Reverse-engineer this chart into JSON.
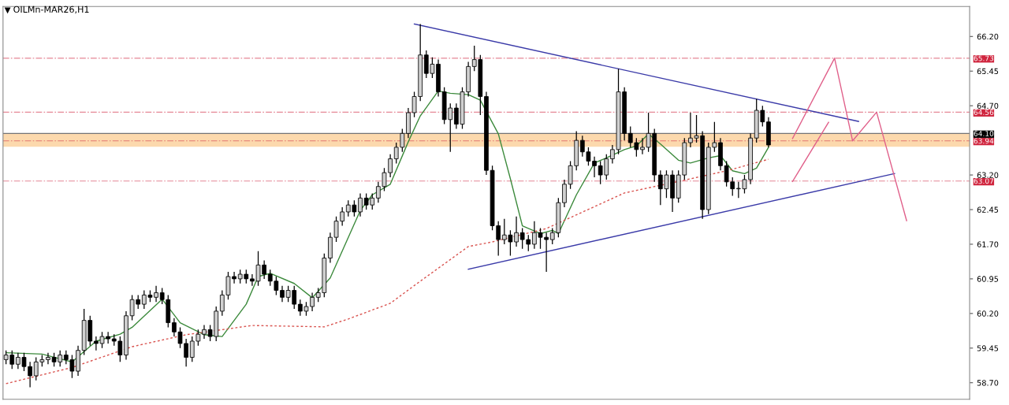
{
  "chart_data": {
    "type": "candlestick",
    "title": "OILMn-MAR26,H1",
    "color": "#000000",
    "categories": [
      null,
      null,
      null,
      null,
      null,
      null,
      null,
      null,
      null,
      null,
      null,
      null,
      null,
      null,
      null,
      null,
      null,
      null,
      null,
      null,
      null,
      null,
      null,
      null,
      null,
      null,
      null,
      null,
      null,
      null,
      null,
      null,
      null,
      null,
      null,
      null,
      null,
      null,
      null,
      null,
      null,
      null,
      null,
      null,
      null,
      null,
      null,
      null,
      null,
      null,
      null,
      null,
      null,
      null,
      null,
      null,
      null,
      null,
      null,
      null,
      null,
      null,
      null,
      null,
      null,
      null,
      null,
      null,
      null,
      null,
      null,
      null,
      null,
      null,
      null,
      null,
      null,
      null,
      null,
      null,
      null,
      null,
      null,
      null,
      null,
      null,
      null,
      null,
      null,
      null,
      null,
      null,
      null,
      null,
      null,
      null,
      null,
      null,
      null,
      null,
      null,
      null,
      null,
      null,
      null,
      null,
      null,
      null,
      null,
      null,
      null,
      null,
      null,
      null,
      null,
      null,
      null,
      null,
      null,
      null,
      null,
      null,
      null,
      null,
      null,
      null,
      null,
      null,
      null,
      null,
      null,
      null,
      null,
      null,
      null,
      null,
      null,
      null,
      null,
      null,
      null,
      null,
      null,
      null,
      null,
      null,
      null,
      null,
      null,
      null,
      null,
      null,
      null,
      null,
      null,
      null,
      null,
      null,
      null,
      null,
      null
    ],
    "ohlc": [
      [
        59.2,
        59.4,
        59.1,
        59.3
      ],
      [
        59.3,
        59.4,
        59.0,
        59.1
      ],
      [
        59.1,
        59.35,
        59.0,
        59.25
      ],
      [
        59.25,
        59.35,
        58.95,
        59.05
      ],
      [
        59.05,
        59.15,
        58.6,
        58.85
      ],
      [
        58.85,
        59.25,
        58.75,
        59.15
      ],
      [
        59.15,
        59.3,
        59.05,
        59.2
      ],
      [
        59.2,
        59.35,
        59.1,
        59.25
      ],
      [
        59.25,
        59.35,
        59.05,
        59.15
      ],
      [
        59.15,
        59.4,
        59.05,
        59.3
      ],
      [
        59.3,
        59.4,
        59.1,
        59.2
      ],
      [
        59.2,
        59.3,
        58.8,
        58.95
      ],
      [
        58.95,
        59.5,
        58.85,
        59.4
      ],
      [
        59.4,
        60.3,
        59.3,
        60.05
      ],
      [
        60.05,
        60.15,
        59.5,
        59.6
      ],
      [
        59.6,
        59.7,
        59.4,
        59.55
      ],
      [
        59.55,
        59.8,
        59.45,
        59.7
      ],
      [
        59.7,
        59.8,
        59.55,
        59.65
      ],
      [
        59.65,
        59.75,
        59.5,
        59.6
      ],
      [
        59.6,
        59.7,
        59.15,
        59.3
      ],
      [
        59.3,
        60.25,
        59.2,
        60.15
      ],
      [
        60.15,
        60.6,
        60.05,
        60.5
      ],
      [
        60.5,
        60.6,
        60.3,
        60.4
      ],
      [
        60.4,
        60.7,
        60.3,
        60.6
      ],
      [
        60.6,
        60.7,
        60.45,
        60.55
      ],
      [
        60.55,
        60.8,
        60.45,
        60.65
      ],
      [
        60.65,
        60.75,
        60.4,
        60.5
      ],
      [
        60.5,
        60.6,
        59.9,
        60.0
      ],
      [
        60.0,
        60.1,
        59.7,
        59.8
      ],
      [
        59.8,
        59.9,
        59.45,
        59.55
      ],
      [
        59.55,
        59.65,
        59.05,
        59.25
      ],
      [
        59.25,
        59.7,
        59.15,
        59.6
      ],
      [
        59.6,
        59.85,
        59.5,
        59.75
      ],
      [
        59.75,
        59.95,
        59.65,
        59.85
      ],
      [
        59.85,
        59.95,
        59.6,
        59.7
      ],
      [
        59.7,
        60.35,
        59.6,
        60.25
      ],
      [
        60.25,
        60.7,
        60.15,
        60.6
      ],
      [
        60.6,
        61.1,
        60.5,
        61.0
      ],
      [
        61.0,
        61.1,
        60.85,
        60.95
      ],
      [
        60.95,
        61.15,
        60.85,
        61.05
      ],
      [
        61.05,
        61.15,
        60.85,
        60.95
      ],
      [
        60.95,
        61.05,
        60.8,
        60.9
      ],
      [
        60.9,
        61.55,
        60.8,
        61.25
      ],
      [
        61.25,
        61.35,
        60.95,
        61.05
      ],
      [
        61.05,
        61.15,
        60.8,
        60.9
      ],
      [
        60.9,
        61.0,
        60.6,
        60.7
      ],
      [
        60.7,
        60.8,
        60.45,
        60.55
      ],
      [
        60.55,
        60.8,
        60.45,
        60.7
      ],
      [
        60.7,
        60.8,
        60.3,
        60.4
      ],
      [
        60.4,
        60.5,
        60.15,
        60.25
      ],
      [
        60.25,
        60.45,
        60.15,
        60.35
      ],
      [
        60.35,
        60.65,
        60.25,
        60.55
      ],
      [
        60.55,
        60.75,
        60.45,
        60.65
      ],
      [
        60.65,
        61.5,
        60.55,
        61.4
      ],
      [
        61.4,
        61.95,
        61.3,
        61.85
      ],
      [
        61.85,
        62.3,
        61.75,
        62.2
      ],
      [
        62.2,
        62.5,
        62.1,
        62.4
      ],
      [
        62.4,
        62.65,
        62.3,
        62.55
      ],
      [
        62.55,
        62.65,
        62.3,
        62.4
      ],
      [
        62.4,
        62.8,
        62.3,
        62.7
      ],
      [
        62.7,
        62.8,
        62.45,
        62.55
      ],
      [
        62.55,
        62.8,
        62.45,
        62.7
      ],
      [
        62.7,
        63.05,
        62.6,
        62.95
      ],
      [
        62.95,
        63.35,
        62.85,
        63.25
      ],
      [
        63.25,
        63.65,
        63.15,
        63.55
      ],
      [
        63.55,
        63.9,
        63.45,
        63.8
      ],
      [
        63.8,
        64.2,
        63.7,
        64.1
      ],
      [
        64.1,
        64.65,
        64.0,
        64.55
      ],
      [
        64.55,
        65.0,
        64.45,
        64.9
      ],
      [
        64.9,
        66.47,
        64.8,
        65.8
      ],
      [
        65.8,
        65.9,
        65.3,
        65.4
      ],
      [
        65.4,
        65.75,
        65.3,
        65.6
      ],
      [
        65.6,
        65.7,
        64.9,
        65.0
      ],
      [
        65.0,
        65.1,
        64.3,
        64.4
      ],
      [
        64.4,
        64.75,
        63.7,
        64.65
      ],
      [
        64.65,
        64.75,
        64.2,
        64.3
      ],
      [
        64.3,
        65.1,
        64.2,
        65.0
      ],
      [
        65.0,
        65.65,
        64.9,
        65.55
      ],
      [
        65.55,
        66.0,
        65.45,
        65.7
      ],
      [
        65.7,
        65.8,
        64.5,
        64.9
      ],
      [
        64.9,
        65.0,
        63.2,
        63.3
      ],
      [
        63.3,
        63.4,
        62.0,
        62.1
      ],
      [
        62.1,
        62.2,
        61.45,
        61.8
      ],
      [
        61.8,
        62.25,
        61.7,
        61.9
      ],
      [
        61.9,
        62.0,
        61.45,
        61.75
      ],
      [
        61.75,
        62.3,
        61.65,
        61.95
      ],
      [
        61.95,
        62.05,
        61.6,
        61.8
      ],
      [
        61.8,
        61.9,
        61.55,
        61.7
      ],
      [
        61.7,
        62.2,
        61.6,
        61.95
      ],
      [
        61.95,
        62.05,
        61.6,
        61.85
      ],
      [
        61.85,
        61.95,
        61.1,
        61.8
      ],
      [
        61.8,
        62.05,
        61.7,
        61.95
      ],
      [
        61.95,
        62.7,
        61.85,
        62.6
      ],
      [
        62.6,
        63.1,
        62.5,
        63.0
      ],
      [
        63.0,
        63.5,
        62.9,
        63.4
      ],
      [
        63.4,
        64.15,
        63.3,
        63.95
      ],
      [
        63.95,
        64.05,
        63.6,
        63.7
      ],
      [
        63.7,
        63.8,
        63.4,
        63.5
      ],
      [
        63.5,
        63.6,
        63.15,
        63.4
      ],
      [
        63.4,
        63.5,
        63.0,
        63.2
      ],
      [
        63.2,
        63.65,
        63.1,
        63.55
      ],
      [
        63.55,
        63.85,
        63.45,
        63.75
      ],
      [
        63.75,
        65.5,
        63.65,
        65.0
      ],
      [
        65.0,
        65.1,
        63.95,
        64.1
      ],
      [
        64.1,
        64.25,
        63.8,
        63.9
      ],
      [
        63.9,
        64.0,
        63.6,
        63.75
      ],
      [
        63.75,
        64.0,
        63.65,
        63.8
      ],
      [
        63.8,
        64.55,
        63.7,
        64.1
      ],
      [
        64.1,
        64.2,
        63.05,
        63.2
      ],
      [
        63.2,
        63.3,
        62.55,
        62.9
      ],
      [
        62.9,
        63.3,
        62.7,
        63.2
      ],
      [
        63.2,
        63.3,
        62.4,
        62.7
      ],
      [
        62.7,
        63.3,
        62.6,
        63.2
      ],
      [
        63.2,
        64.0,
        63.1,
        63.9
      ],
      [
        63.9,
        64.55,
        63.8,
        64.0
      ],
      [
        64.0,
        64.5,
        63.9,
        64.05
      ],
      [
        64.05,
        64.15,
        62.25,
        62.45
      ],
      [
        62.45,
        63.9,
        62.35,
        63.8
      ],
      [
        63.8,
        64.35,
        63.7,
        63.9
      ],
      [
        63.9,
        64.0,
        63.3,
        63.4
      ],
      [
        63.4,
        63.5,
        62.95,
        63.05
      ],
      [
        63.05,
        63.15,
        62.75,
        62.9
      ],
      [
        62.9,
        63.05,
        62.7,
        62.9
      ],
      [
        62.9,
        63.2,
        62.8,
        63.1
      ],
      [
        63.1,
        64.1,
        63.0,
        64.0
      ],
      [
        64.0,
        64.85,
        63.9,
        64.6
      ],
      [
        64.6,
        64.7,
        64.25,
        64.35
      ],
      [
        64.35,
        64.45,
        63.8,
        63.85
      ],
      null,
      null,
      null,
      null,
      null,
      null,
      null,
      null,
      null,
      null,
      null,
      null,
      null,
      null,
      null,
      null,
      null,
      null,
      null,
      null,
      null,
      null,
      null,
      null,
      null,
      null,
      null,
      null,
      null,
      null,
      null,
      null,
      null
    ],
    "series": [
      {
        "type": "line",
        "color": "#3c8a3c",
        "line_style": "solid",
        "values": [
          59.35,
          null,
          null,
          null,
          null,
          null,
          59.32,
          null,
          null,
          null,
          null,
          59.15,
          null,
          null,
          null,
          59.6,
          null,
          null,
          null,
          59.75,
          null,
          59.9,
          null,
          null,
          null,
          null,
          60.51,
          null,
          null,
          60.0,
          null,
          null,
          null,
          59.74,
          null,
          null,
          59.7,
          null,
          null,
          null,
          60.4,
          null,
          61.0,
          null,
          61.07,
          null,
          null,
          null,
          60.85,
          null,
          null,
          60.54,
          null,
          null,
          60.97,
          null,
          null,
          null,
          null,
          62.43,
          null,
          62.77,
          null,
          null,
          63.0,
          null,
          null,
          63.92,
          null,
          64.48,
          null,
          null,
          65.02,
          null,
          64.97,
          null,
          null,
          64.94,
          null,
          64.82,
          null,
          null,
          64.09,
          null,
          63.12,
          null,
          62.1,
          null,
          null,
          61.93,
          null,
          62.0,
          61.93,
          null,
          null,
          62.77,
          null,
          null,
          63.46,
          null,
          63.57,
          null,
          null,
          63.75,
          null,
          63.83,
          null,
          64.09,
          null,
          63.87,
          null,
          null,
          63.52,
          null,
          63.46,
          null,
          null,
          63.57,
          null,
          63.62,
          null,
          63.29,
          null,
          63.23,
          null,
          63.35,
          null,
          63.8,
          null,
          null,
          null,
          null,
          null,
          null,
          null,
          null,
          null,
          null,
          null,
          null,
          null,
          null,
          null,
          null,
          null,
          null,
          null,
          null,
          null,
          null,
          null,
          null,
          null,
          null,
          null,
          null,
          null,
          null,
          null,
          null,
          null
        ]
      },
      {
        "type": "line",
        "color": "#d9534f",
        "line_style": "dotted",
        "values": [
          58.68,
          null,
          null,
          null,
          null,
          null,
          null,
          null,
          null,
          null,
          null,
          59.03,
          null,
          null,
          null,
          null,
          null,
          null,
          null,
          null,
          null,
          59.48,
          null,
          null,
          null,
          null,
          null,
          null,
          null,
          null,
          59.74,
          null,
          null,
          null,
          null,
          null,
          null,
          null,
          null,
          null,
          null,
          59.94,
          null,
          null,
          null,
          null,
          null,
          null,
          null,
          null,
          null,
          null,
          null,
          59.91,
          null,
          null,
          null,
          60.08,
          null,
          null,
          null,
          null,
          null,
          null,
          60.42,
          null,
          null,
          null,
          null,
          60.9,
          null,
          null,
          null,
          null,
          null,
          null,
          null,
          61.65,
          null,
          null,
          null,
          61.75,
          null,
          null,
          null,
          null,
          null,
          null,
          null,
          null,
          62.04,
          null,
          null,
          null,
          null,
          null,
          null,
          null,
          null,
          null,
          null,
          null,
          null,
          62.81,
          null,
          null,
          null,
          null,
          null,
          null,
          null,
          null,
          63.06,
          null,
          null,
          null,
          null,
          null,
          null,
          null,
          63.29,
          null,
          null,
          null,
          null,
          null,
          null,
          63.54,
          null,
          null,
          null,
          null,
          null,
          null,
          null,
          null,
          null,
          null,
          null,
          null,
          null,
          null,
          null,
          null,
          null,
          null,
          null,
          null,
          null,
          null,
          null,
          null,
          null,
          null,
          null,
          null,
          null,
          null,
          null,
          null,
          null
        ]
      },
      {
        "type": "line",
        "color": "#3a3aa8",
        "line_style": "solid",
        "values": [
          null,
          null,
          null,
          null,
          null,
          null,
          null,
          null,
          null,
          null,
          null,
          null,
          null,
          null,
          null,
          null,
          null,
          null,
          null,
          null,
          null,
          null,
          null,
          null,
          null,
          null,
          null,
          null,
          null,
          null,
          null,
          null,
          null,
          null,
          null,
          null,
          null,
          null,
          null,
          null,
          null,
          null,
          null,
          null,
          null,
          null,
          null,
          null,
          null,
          null,
          null,
          null,
          null,
          null,
          null,
          null,
          null,
          null,
          null,
          null,
          null,
          null,
          null,
          null,
          null,
          null,
          null,
          null,
          66.47,
          null,
          null,
          null,
          null,
          null,
          null,
          null,
          null,
          null,
          null,
          null,
          null,
          null,
          null,
          null,
          null,
          null,
          null,
          null,
          null,
          null,
          null,
          null,
          null,
          null,
          null,
          null,
          null,
          null,
          null,
          null,
          null,
          null,
          null,
          null,
          null,
          null,
          null,
          null,
          null,
          null,
          null,
          null,
          null,
          null,
          null,
          null,
          null,
          null,
          null,
          null,
          null,
          null,
          null,
          null,
          null,
          null,
          null,
          null,
          null,
          null,
          null,
          null,
          null,
          null,
          null,
          null,
          null,
          null,
          null,
          null,
          null,
          null,
          64.36,
          null,
          null,
          null,
          null,
          null,
          null,
          null,
          null,
          null,
          null,
          null,
          null,
          null,
          null,
          null,
          null,
          null,
          null
        ]
      },
      {
        "type": "line",
        "color": "#3a3aa8",
        "line_style": "solid",
        "values": [
          null,
          null,
          null,
          null,
          null,
          null,
          null,
          null,
          null,
          null,
          null,
          null,
          null,
          null,
          null,
          null,
          null,
          null,
          null,
          null,
          null,
          null,
          null,
          null,
          null,
          null,
          null,
          null,
          null,
          null,
          null,
          null,
          null,
          null,
          null,
          null,
          null,
          null,
          null,
          null,
          null,
          null,
          null,
          null,
          null,
          null,
          null,
          null,
          null,
          null,
          null,
          null,
          null,
          null,
          null,
          null,
          null,
          null,
          null,
          null,
          null,
          null,
          null,
          null,
          null,
          null,
          null,
          null,
          null,
          null,
          null,
          null,
          null,
          null,
          null,
          null,
          null,
          61.16,
          null,
          null,
          null,
          null,
          null,
          null,
          null,
          null,
          null,
          null,
          null,
          null,
          null,
          null,
          null,
          null,
          null,
          null,
          null,
          null,
          null,
          null,
          null,
          null,
          null,
          null,
          null,
          null,
          null,
          null,
          null,
          null,
          null,
          null,
          null,
          null,
          null,
          null,
          null,
          null,
          null,
          null,
          null,
          null,
          null,
          null,
          null,
          null,
          null,
          null,
          null,
          null,
          null,
          null,
          null,
          null,
          null,
          null,
          null,
          null,
          null,
          null,
          null,
          null,
          null,
          null,
          null,
          null,
          null,
          null,
          63.23,
          null,
          null,
          null,
          null,
          null,
          null,
          null,
          null,
          null,
          null,
          null,
          null
        ]
      },
      {
        "type": "line",
        "color": "#e0608a",
        "line_style": "solid",
        "values": [
          null,
          null,
          null,
          null,
          null,
          null,
          null,
          null,
          null,
          null,
          null,
          null,
          null,
          null,
          null,
          null,
          null,
          null,
          null,
          null,
          null,
          null,
          null,
          null,
          null,
          null,
          null,
          null,
          null,
          null,
          null,
          null,
          null,
          null,
          null,
          null,
          null,
          null,
          null,
          null,
          null,
          null,
          null,
          null,
          null,
          null,
          null,
          null,
          null,
          null,
          null,
          null,
          null,
          null,
          null,
          null,
          null,
          null,
          null,
          null,
          null,
          null,
          null,
          null,
          null,
          null,
          null,
          null,
          null,
          null,
          null,
          null,
          null,
          null,
          null,
          null,
          null,
          null,
          null,
          null,
          null,
          null,
          null,
          null,
          null,
          null,
          null,
          null,
          null,
          null,
          null,
          null,
          null,
          null,
          null,
          null,
          null,
          null,
          null,
          null,
          null,
          null,
          null,
          null,
          null,
          null,
          null,
          null,
          null,
          null,
          null,
          null,
          null,
          null,
          null,
          null,
          null,
          null,
          null,
          null,
          null,
          null,
          null,
          null,
          null,
          null,
          null,
          null,
          null,
          null,
          null,
          63.99,
          null,
          null,
          null,
          null,
          null,
          null,
          65.73,
          null,
          null,
          63.94,
          null,
          null,
          null,
          64.56,
          null,
          null,
          null,
          null,
          62.21,
          null,
          null,
          null,
          null,
          null,
          null,
          null,
          null,
          null,
          null
        ]
      },
      {
        "type": "line",
        "color": "#e0608a",
        "line_style": "solid",
        "values": [
          null,
          null,
          null,
          null,
          null,
          null,
          null,
          null,
          null,
          null,
          null,
          null,
          null,
          null,
          null,
          null,
          null,
          null,
          null,
          null,
          null,
          null,
          null,
          null,
          null,
          null,
          null,
          null,
          null,
          null,
          null,
          null,
          null,
          null,
          null,
          null,
          null,
          null,
          null,
          null,
          null,
          null,
          null,
          null,
          null,
          null,
          null,
          null,
          null,
          null,
          null,
          null,
          null,
          null,
          null,
          null,
          null,
          null,
          null,
          null,
          null,
          null,
          null,
          null,
          null,
          null,
          null,
          null,
          null,
          null,
          null,
          null,
          null,
          null,
          null,
          null,
          null,
          null,
          null,
          null,
          null,
          null,
          null,
          null,
          null,
          null,
          null,
          null,
          null,
          null,
          null,
          null,
          null,
          null,
          null,
          null,
          null,
          null,
          null,
          null,
          null,
          null,
          null,
          null,
          null,
          null,
          null,
          null,
          null,
          null,
          null,
          null,
          null,
          null,
          null,
          null,
          null,
          null,
          null,
          null,
          null,
          null,
          null,
          null,
          null,
          null,
          null,
          null,
          null,
          null,
          null,
          63.06,
          null,
          null,
          null,
          null,
          null,
          64.34,
          null,
          null,
          null,
          null,
          null,
          null,
          null,
          null,
          null,
          null,
          null,
          null,
          null,
          null,
          null,
          null,
          null,
          null,
          null,
          null,
          null,
          null,
          null
        ]
      }
    ],
    "bands": [
      {
        "axis": "y",
        "from": 63.81,
        "to": 64.09,
        "color": "#fcd9ad"
      }
    ],
    "ref_lines": [
      {
        "axis": "y",
        "value": 65.73,
        "label": "65.73",
        "color": "#d0263f",
        "line_style": "dashed"
      },
      {
        "axis": "y",
        "value": 64.56,
        "label": "64.56",
        "color": "#d0263f",
        "line_style": "dashed"
      },
      {
        "axis": "y",
        "value": 64.1,
        "label": "64.10",
        "color": "#000000",
        "line_style": "solid"
      },
      {
        "axis": "y",
        "value": 63.94,
        "label": "63.94",
        "color": "#d0263f",
        "line_style": "dashed"
      },
      {
        "axis": "y",
        "value": 63.07,
        "label": "63.07",
        "color": "#d0263f",
        "line_style": "dashed"
      }
    ],
    "ylim": [
      58.34,
      66.85
    ],
    "yticks": [
      {
        "value": 58.7,
        "label": "58.70"
      },
      {
        "value": 59.45,
        "label": "59.45"
      },
      {
        "value": 60.2,
        "label": "60.20"
      },
      {
        "value": 60.95,
        "label": "60.95"
      },
      {
        "value": 61.7,
        "label": "61.70"
      },
      {
        "value": 62.45,
        "label": "62.45"
      },
      {
        "value": 63.2,
        "label": "63.20"
      },
      {
        "value": 64.7,
        "label": "64.70"
      },
      {
        "value": 65.45,
        "label": "65.45"
      },
      {
        "value": 66.2,
        "label": "66.20"
      }
    ],
    "grid": false,
    "legend": false
  }
}
